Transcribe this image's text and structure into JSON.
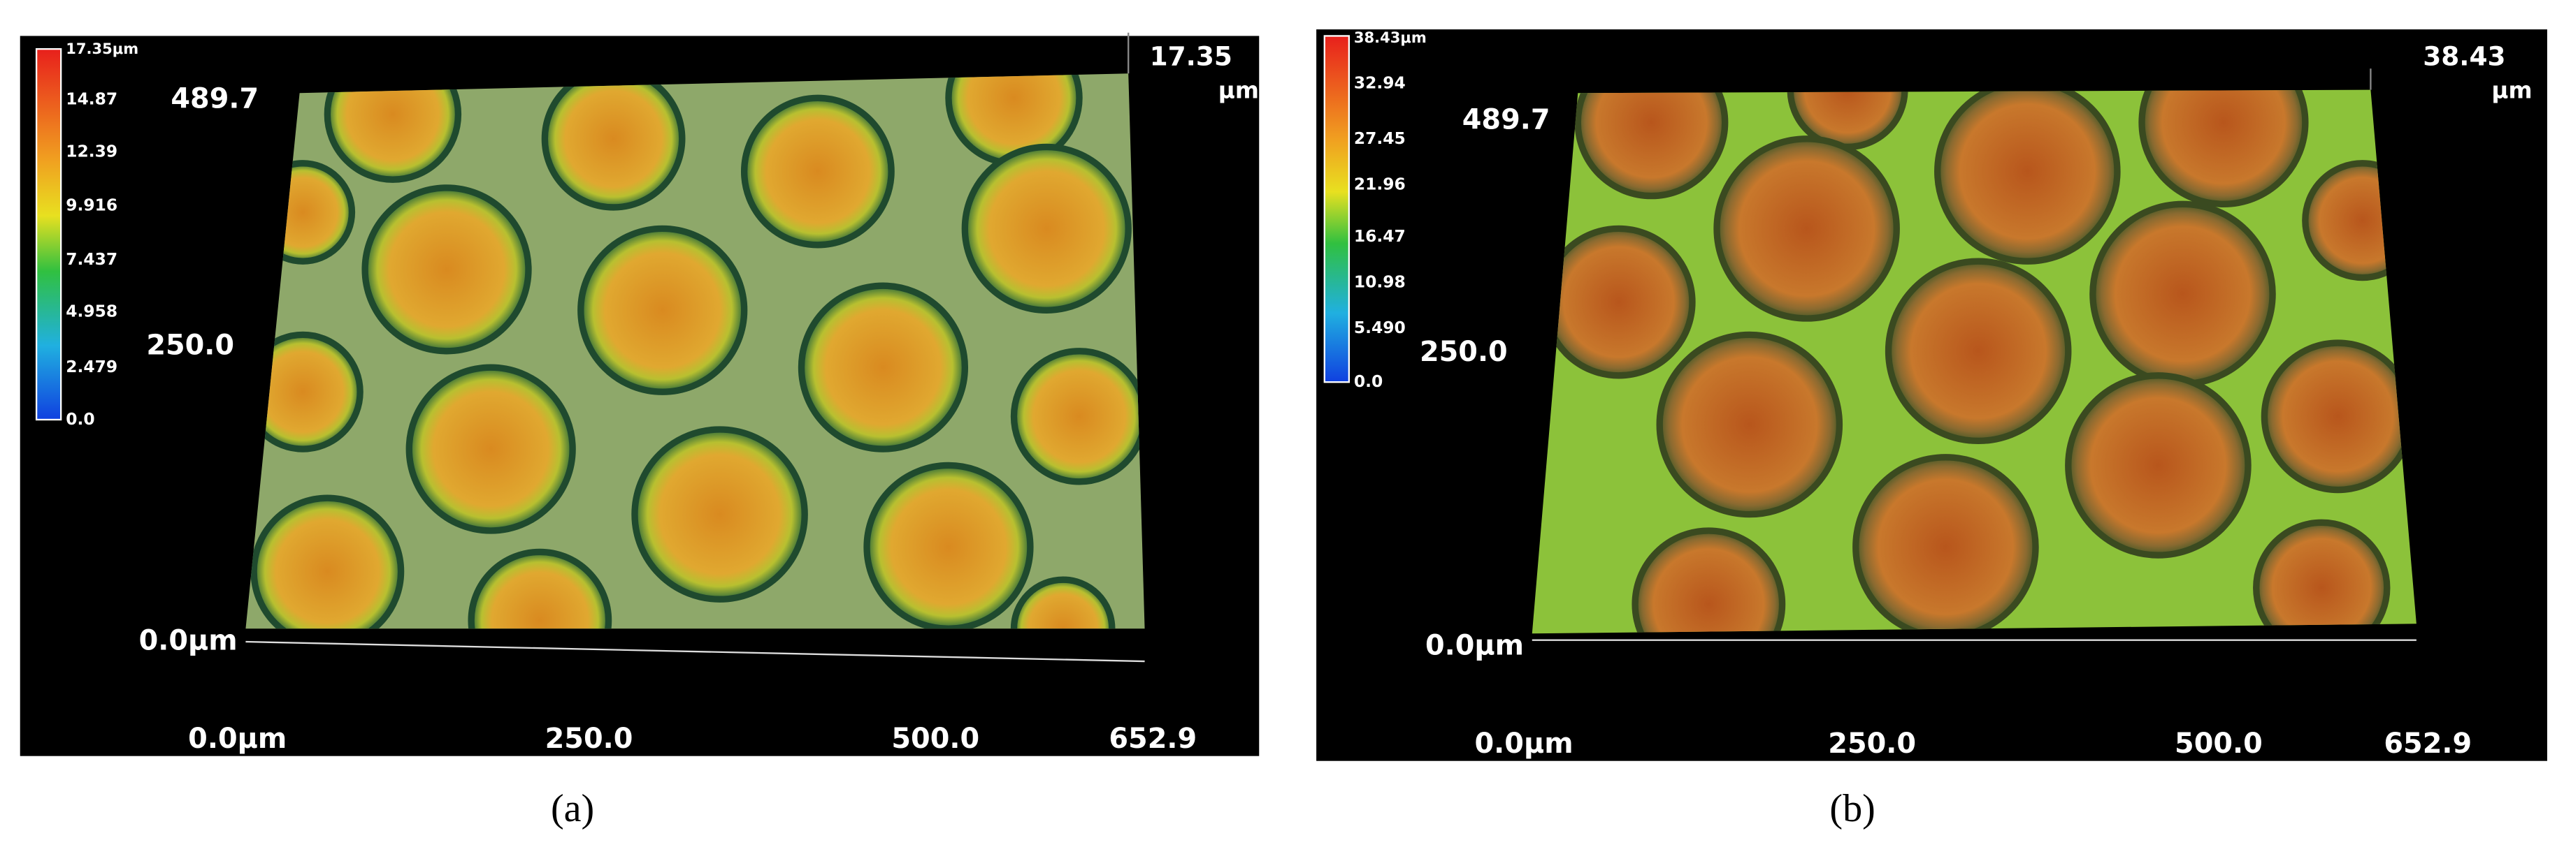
{
  "panels": [
    {
      "caption": "(a)",
      "colorbar_labels": [
        "17.35μm",
        "14.87",
        "12.39",
        "9.916",
        "7.437",
        "4.958",
        "2.479",
        "0.0"
      ],
      "z_max": "17.35",
      "z_unit": "μm",
      "y_labels": [
        "489.7",
        "250.0",
        "0.0μm"
      ],
      "x_labels": [
        "0.0μm",
        "250.0",
        "500.0",
        "652.9"
      ]
    },
    {
      "caption": "(b)",
      "colorbar_labels": [
        "38.43μm",
        "32.94",
        "27.45",
        "21.96",
        "16.47",
        "10.98",
        "5.490",
        "0.0"
      ],
      "z_max": "38.43",
      "z_unit": "μm",
      "y_labels": [
        "489.7",
        "250.0",
        "0.0μm"
      ],
      "x_labels": [
        "0.0μm",
        "250.0",
        "500.0",
        "652.9"
      ]
    }
  ]
}
